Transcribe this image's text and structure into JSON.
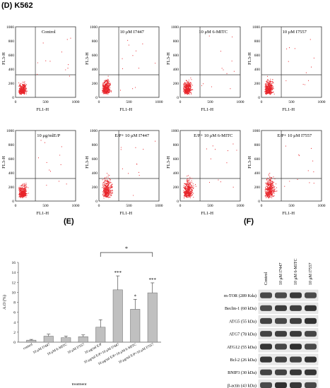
{
  "panel_d": {
    "label": "(D) K562",
    "y_axis": "FL3-H",
    "x_axis": "FL1-H",
    "tick_labels": [
      "0",
      "500",
      "1000"
    ],
    "y_ticks": [
      "0",
      "200",
      "400",
      "600",
      "800",
      "1000"
    ],
    "plots": [
      {
        "title": "Control"
      },
      {
        "title": "10 μM I7447"
      },
      {
        "title": "10 μM 6-MITC"
      },
      {
        "title": "10 μM I7557"
      },
      {
        "title": "10 μg/mlE/P"
      },
      {
        "title": "E/P+ 10 μM I7447"
      },
      {
        "title": "E/P+ 10 μM 6-MITC"
      },
      {
        "title": "E/P+ 10 μM I7557"
      }
    ],
    "dot_color": "#e8242a"
  },
  "panel_e": {
    "label": "(E)"
  },
  "panel_f": {
    "label": "(F)"
  },
  "chart_data": [
    {
      "type": "bar",
      "title": "",
      "xlabel": "treatment",
      "ylabel": "A.O (%)",
      "ylim": [
        0,
        16
      ],
      "yticks": [
        "0",
        "2",
        "4",
        "6",
        "8",
        "10",
        "12",
        "14",
        "16"
      ],
      "categories": [
        "control",
        "10 μM I7447",
        "10 μM 6-MITC",
        "10 μM I7557",
        "10 μg/ml E/P",
        "10 μg/ml E/P+10 μM I7447",
        "10 μg/ml E/P+10 μM 6-MITC",
        "10 μg/ml E/P+10 μM I7557"
      ],
      "values": [
        0.4,
        1.2,
        0.9,
        1.1,
        3.0,
        10.5,
        6.6,
        9.9
      ],
      "errors": [
        0.15,
        0.4,
        0.3,
        0.35,
        1.5,
        2.8,
        2.0,
        2.0
      ],
      "significance": [
        "",
        "",
        "",
        "",
        "",
        "***",
        "*",
        "***"
      ],
      "bracket": {
        "from": 4,
        "to": 7,
        "label": "*"
      },
      "bar_color": "#c0c0c0"
    }
  ],
  "blot": {
    "lanes": [
      "Control",
      "10 μM I7447",
      "10 μM 6-MITC",
      "10 μM I7557"
    ],
    "proteins": [
      "m-TOR (289 Kda)",
      "Beclin-1 (60 kDa)",
      "ATG5 (55 kDa)",
      "ATG7 (78 kDa)",
      "ATG12 (55 kDa)",
      "Bcl-2 (26 kDa)",
      "BNIP3 (30 kDa)",
      "β-actin (43 kDa)"
    ]
  }
}
